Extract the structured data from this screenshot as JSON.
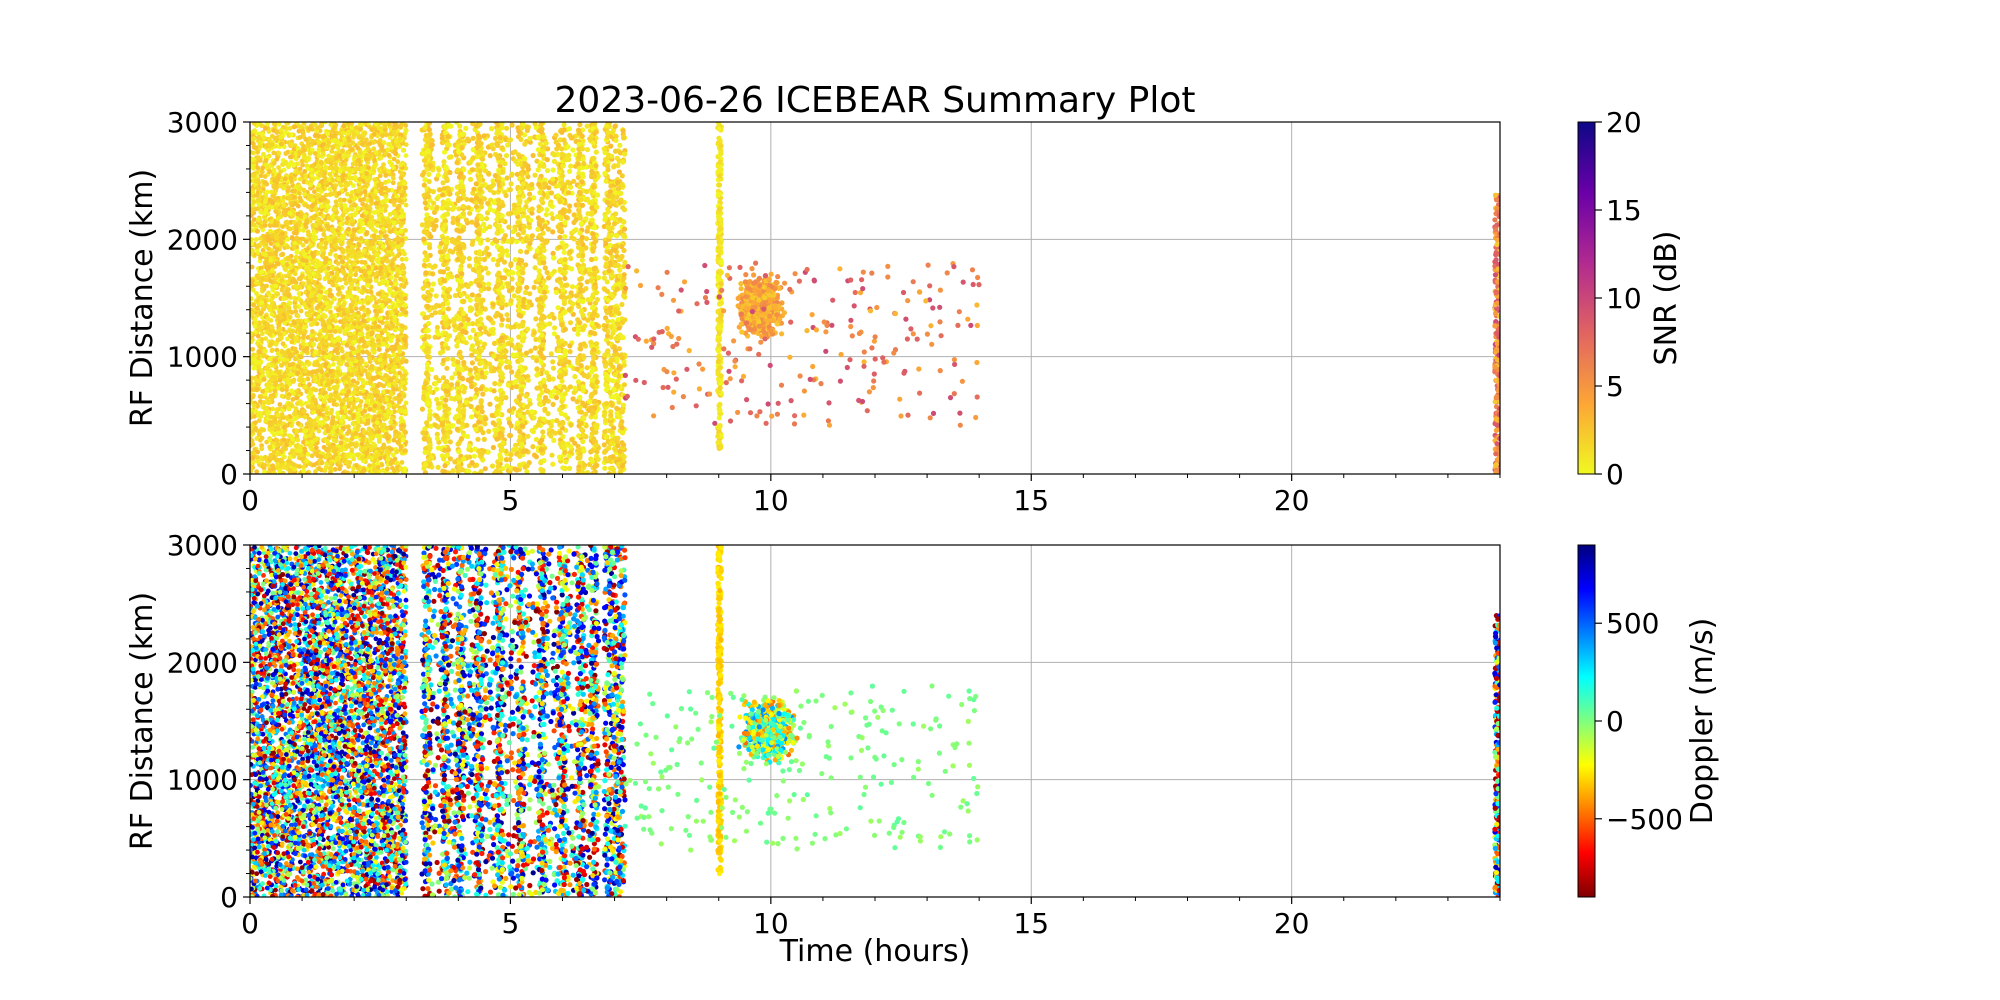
{
  "figure": {
    "title": "2023-06-26 ICEBEAR Summary Plot"
  },
  "chart_data": [
    {
      "type": "scatter",
      "panel": "top",
      "xlabel": "",
      "ylabel": "RF Distance (km)",
      "xlim": [
        0,
        24
      ],
      "ylim": [
        0,
        3000
      ],
      "xticks": [
        "0",
        "5",
        "10",
        "15",
        "20"
      ],
      "yticks": [
        "0",
        "1000",
        "2000",
        "3000"
      ],
      "grid": true,
      "color_variable": "SNR (dB)",
      "colorbar": {
        "label": "SNR (dB)",
        "range": [
          0,
          20
        ],
        "ticks": [
          "0",
          "5",
          "10",
          "15",
          "20"
        ],
        "colormap": "plasma_r",
        "stops": [
          "#f0f921",
          "#fca636",
          "#e16462",
          "#b12a90",
          "#6a00a8",
          "#0d0887"
        ]
      },
      "regions": [
        {
          "name": "dense block A",
          "x_range": [
            0,
            3.0
          ],
          "y_range": [
            0,
            3000
          ],
          "color_value_range": [
            0,
            3
          ],
          "density": "very high"
        },
        {
          "name": "dense block B",
          "x_range": [
            3.3,
            6.7
          ],
          "y_range": [
            0,
            3000
          ],
          "color_value_range": [
            0,
            3
          ],
          "density": "high"
        },
        {
          "name": "streaks",
          "x_range": [
            6.8,
            7.2
          ],
          "y_range": [
            0,
            3000
          ],
          "color_value_range": [
            0,
            3
          ],
          "density": "medium"
        },
        {
          "name": "vertical line",
          "x_range": [
            8.98,
            9.05
          ],
          "y_range": [
            200,
            3000
          ],
          "color_value_range": [
            0,
            2
          ],
          "density": "line"
        },
        {
          "name": "cluster",
          "x_range": [
            9.3,
            10.3
          ],
          "y_range": [
            1100,
            1750
          ],
          "color_value_range": [
            2,
            6
          ],
          "density": "high"
        },
        {
          "name": "sparse echoes",
          "x_range": [
            7.2,
            14.0
          ],
          "y_range": [
            400,
            1800
          ],
          "color_value_range": [
            3,
            10
          ],
          "density": "low"
        },
        {
          "name": "end-of-day",
          "x_range": [
            23.9,
            24.0
          ],
          "y_range": [
            0,
            2400
          ],
          "color_value_range": [
            2,
            10
          ],
          "density": "low"
        }
      ]
    },
    {
      "type": "scatter",
      "panel": "bottom",
      "xlabel": "Time (hours)",
      "ylabel": "RF Distance (km)",
      "xlim": [
        0,
        24
      ],
      "ylim": [
        0,
        3000
      ],
      "xticks": [
        "0",
        "5",
        "10",
        "15",
        "20"
      ],
      "yticks": [
        "0",
        "1000",
        "2000",
        "3000"
      ],
      "grid": true,
      "color_variable": "Doppler (m/s)",
      "colorbar": {
        "label": "Doppler (m/s)",
        "range": [
          -900,
          900
        ],
        "ticks": [
          {
            "value": -500,
            "label": "−500"
          },
          {
            "value": 0,
            "label": "0"
          },
          {
            "value": 500,
            "label": "500"
          }
        ],
        "colormap": "jet_r",
        "stops": [
          "#7f0000",
          "#ff0000",
          "#ff7f00",
          "#ffff00",
          "#7fff7f",
          "#00ffff",
          "#007fff",
          "#0000ff",
          "#00007f"
        ]
      },
      "regions": [
        {
          "name": "dense block A",
          "x_range": [
            0,
            3.0
          ],
          "y_range": [
            0,
            3000
          ],
          "color_value_range": [
            -900,
            900
          ],
          "density": "very high"
        },
        {
          "name": "dense block B",
          "x_range": [
            3.3,
            6.7
          ],
          "y_range": [
            0,
            3000
          ],
          "color_value_range": [
            -900,
            900
          ],
          "density": "high"
        },
        {
          "name": "streaks",
          "x_range": [
            6.8,
            7.2
          ],
          "y_range": [
            0,
            3000
          ],
          "color_value_range": [
            -900,
            900
          ],
          "density": "medium"
        },
        {
          "name": "vertical line",
          "x_range": [
            8.98,
            9.05
          ],
          "y_range": [
            200,
            3000
          ],
          "color_value_range": [
            -350,
            -250
          ],
          "density": "line"
        },
        {
          "name": "cluster",
          "x_range": [
            9.3,
            10.6
          ],
          "y_range": [
            1100,
            1750
          ],
          "color_value_range": [
            -500,
            450
          ],
          "density": "high"
        },
        {
          "name": "sparse echoes",
          "x_range": [
            7.2,
            14.0
          ],
          "y_range": [
            400,
            1800
          ],
          "color_value_range": [
            -60,
            60
          ],
          "density": "low"
        },
        {
          "name": "end-of-day",
          "x_range": [
            23.9,
            24.0
          ],
          "y_range": [
            0,
            2400
          ],
          "color_value_range": [
            -900,
            900
          ],
          "density": "low"
        }
      ]
    }
  ]
}
